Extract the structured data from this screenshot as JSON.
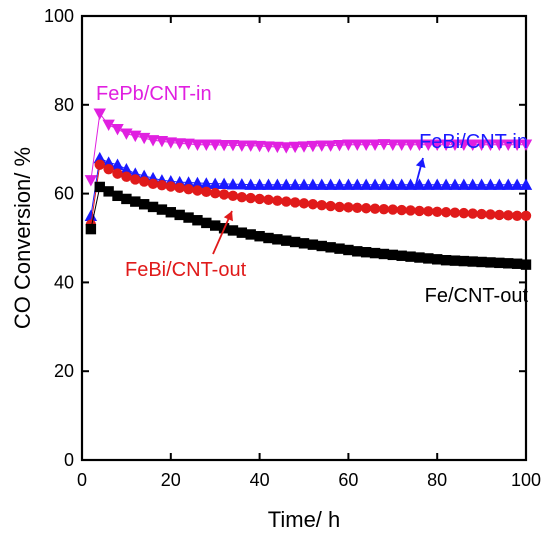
{
  "chart_data": {
    "type": "scatter",
    "xlabel": "Time/ h",
    "ylabel": "CO Conversion/ %",
    "xlim": [
      0,
      100
    ],
    "ylim": [
      0,
      100
    ],
    "xticks": [
      0,
      20,
      40,
      60,
      80,
      100
    ],
    "yticks": [
      0,
      20,
      40,
      60,
      80,
      100
    ],
    "grid": false,
    "series": [
      {
        "name": "FePb/CNT-in",
        "marker": "triangle-down",
        "color": "#e020e0",
        "x": [
          2,
          4,
          6,
          8,
          10,
          12,
          14,
          16,
          18,
          20,
          22,
          24,
          26,
          28,
          30,
          32,
          34,
          36,
          38,
          40,
          42,
          44,
          46,
          48,
          50,
          52,
          54,
          56,
          58,
          60,
          62,
          64,
          66,
          68,
          70,
          72,
          74,
          76,
          78,
          80,
          82,
          84,
          86,
          88,
          90,
          92,
          94,
          96,
          98,
          100
        ],
        "y": [
          63,
          78,
          75.5,
          74.5,
          73.5,
          73,
          72.5,
          72,
          71.8,
          71.5,
          71.3,
          71.2,
          71,
          71,
          71,
          70.9,
          70.9,
          70.8,
          70.8,
          70.7,
          70.6,
          70.5,
          70.4,
          70.5,
          70.6,
          70.7,
          70.8,
          70.8,
          70.9,
          71,
          71,
          71,
          71,
          71.1,
          71,
          71,
          71,
          71,
          71,
          71,
          71,
          71,
          71,
          71,
          71,
          71,
          71,
          71,
          71,
          71
        ]
      },
      {
        "name": "FeBi/CNT-in",
        "marker": "triangle-up",
        "color": "#1a1aff",
        "x": [
          2,
          4,
          6,
          8,
          10,
          12,
          14,
          16,
          18,
          20,
          22,
          24,
          26,
          28,
          30,
          32,
          34,
          36,
          38,
          40,
          42,
          44,
          46,
          48,
          50,
          52,
          54,
          56,
          58,
          60,
          62,
          64,
          66,
          68,
          70,
          72,
          74,
          76,
          78,
          80,
          82,
          84,
          86,
          88,
          90,
          92,
          94,
          96,
          98,
          100
        ],
        "y": [
          55,
          68,
          67,
          66.5,
          65.5,
          64.5,
          64,
          63.5,
          63,
          62.8,
          62.6,
          62.5,
          62.4,
          62.3,
          62.2,
          62.2,
          62.1,
          62.1,
          62,
          62,
          62,
          62,
          62,
          62,
          62,
          62,
          62,
          62,
          62,
          62,
          62,
          62,
          62,
          62,
          62,
          62,
          62,
          62,
          62,
          62,
          62,
          62,
          62,
          62,
          62,
          62,
          62,
          62,
          62,
          62
        ]
      },
      {
        "name": "FeBi/CNT-out",
        "marker": "circle",
        "color": "#e01a1a",
        "x": [
          2,
          4,
          6,
          8,
          10,
          12,
          14,
          16,
          18,
          20,
          22,
          24,
          26,
          28,
          30,
          32,
          34,
          36,
          38,
          40,
          42,
          44,
          46,
          48,
          50,
          52,
          54,
          56,
          58,
          60,
          62,
          64,
          66,
          68,
          70,
          72,
          74,
          76,
          78,
          80,
          82,
          84,
          86,
          88,
          90,
          92,
          94,
          96,
          98,
          100
        ],
        "y": [
          53,
          66.5,
          65.5,
          64.5,
          63.8,
          63.2,
          62.7,
          62.2,
          61.9,
          61.6,
          61.3,
          61,
          60.7,
          60.4,
          60.1,
          59.8,
          59.5,
          59.2,
          59,
          58.8,
          58.6,
          58.4,
          58.2,
          58,
          57.8,
          57.6,
          57.4,
          57.2,
          57,
          56.9,
          56.8,
          56.7,
          56.6,
          56.5,
          56.4,
          56.3,
          56.2,
          56.1,
          56,
          55.9,
          55.8,
          55.7,
          55.6,
          55.5,
          55.4,
          55.3,
          55.2,
          55.1,
          55,
          55
        ]
      },
      {
        "name": "Fe/CNT-out",
        "marker": "square",
        "color": "#000000",
        "x": [
          2,
          4,
          6,
          8,
          10,
          12,
          14,
          16,
          18,
          20,
          22,
          24,
          26,
          28,
          30,
          32,
          34,
          36,
          38,
          40,
          42,
          44,
          46,
          48,
          50,
          52,
          54,
          56,
          58,
          60,
          62,
          64,
          66,
          68,
          70,
          72,
          74,
          76,
          78,
          80,
          82,
          84,
          86,
          88,
          90,
          92,
          94,
          96,
          98,
          100
        ],
        "y": [
          52,
          61.5,
          60.5,
          59.5,
          58.8,
          58.2,
          57.6,
          57,
          56.4,
          55.8,
          55.2,
          54.6,
          54,
          53.4,
          52.8,
          52.2,
          51.7,
          51.2,
          50.8,
          50.4,
          50,
          49.7,
          49.4,
          49.1,
          48.8,
          48.5,
          48.2,
          47.9,
          47.6,
          47.3,
          47,
          46.8,
          46.6,
          46.4,
          46.2,
          46,
          45.8,
          45.6,
          45.4,
          45.2,
          45,
          44.9,
          44.8,
          44.7,
          44.6,
          44.5,
          44.4,
          44.3,
          44.2,
          44
        ]
      }
    ],
    "annotations": [
      {
        "text": "FePb/CNT-in",
        "color": "#e020e0",
        "series": 0
      },
      {
        "text": "FeBi/CNT-in",
        "color": "#1a1aff",
        "series": 1
      },
      {
        "text": "FeBi/CNT-out",
        "color": "#e01a1a",
        "series": 2
      },
      {
        "text": "Fe/CNT-out",
        "color": "#000000",
        "series": 3
      }
    ]
  }
}
